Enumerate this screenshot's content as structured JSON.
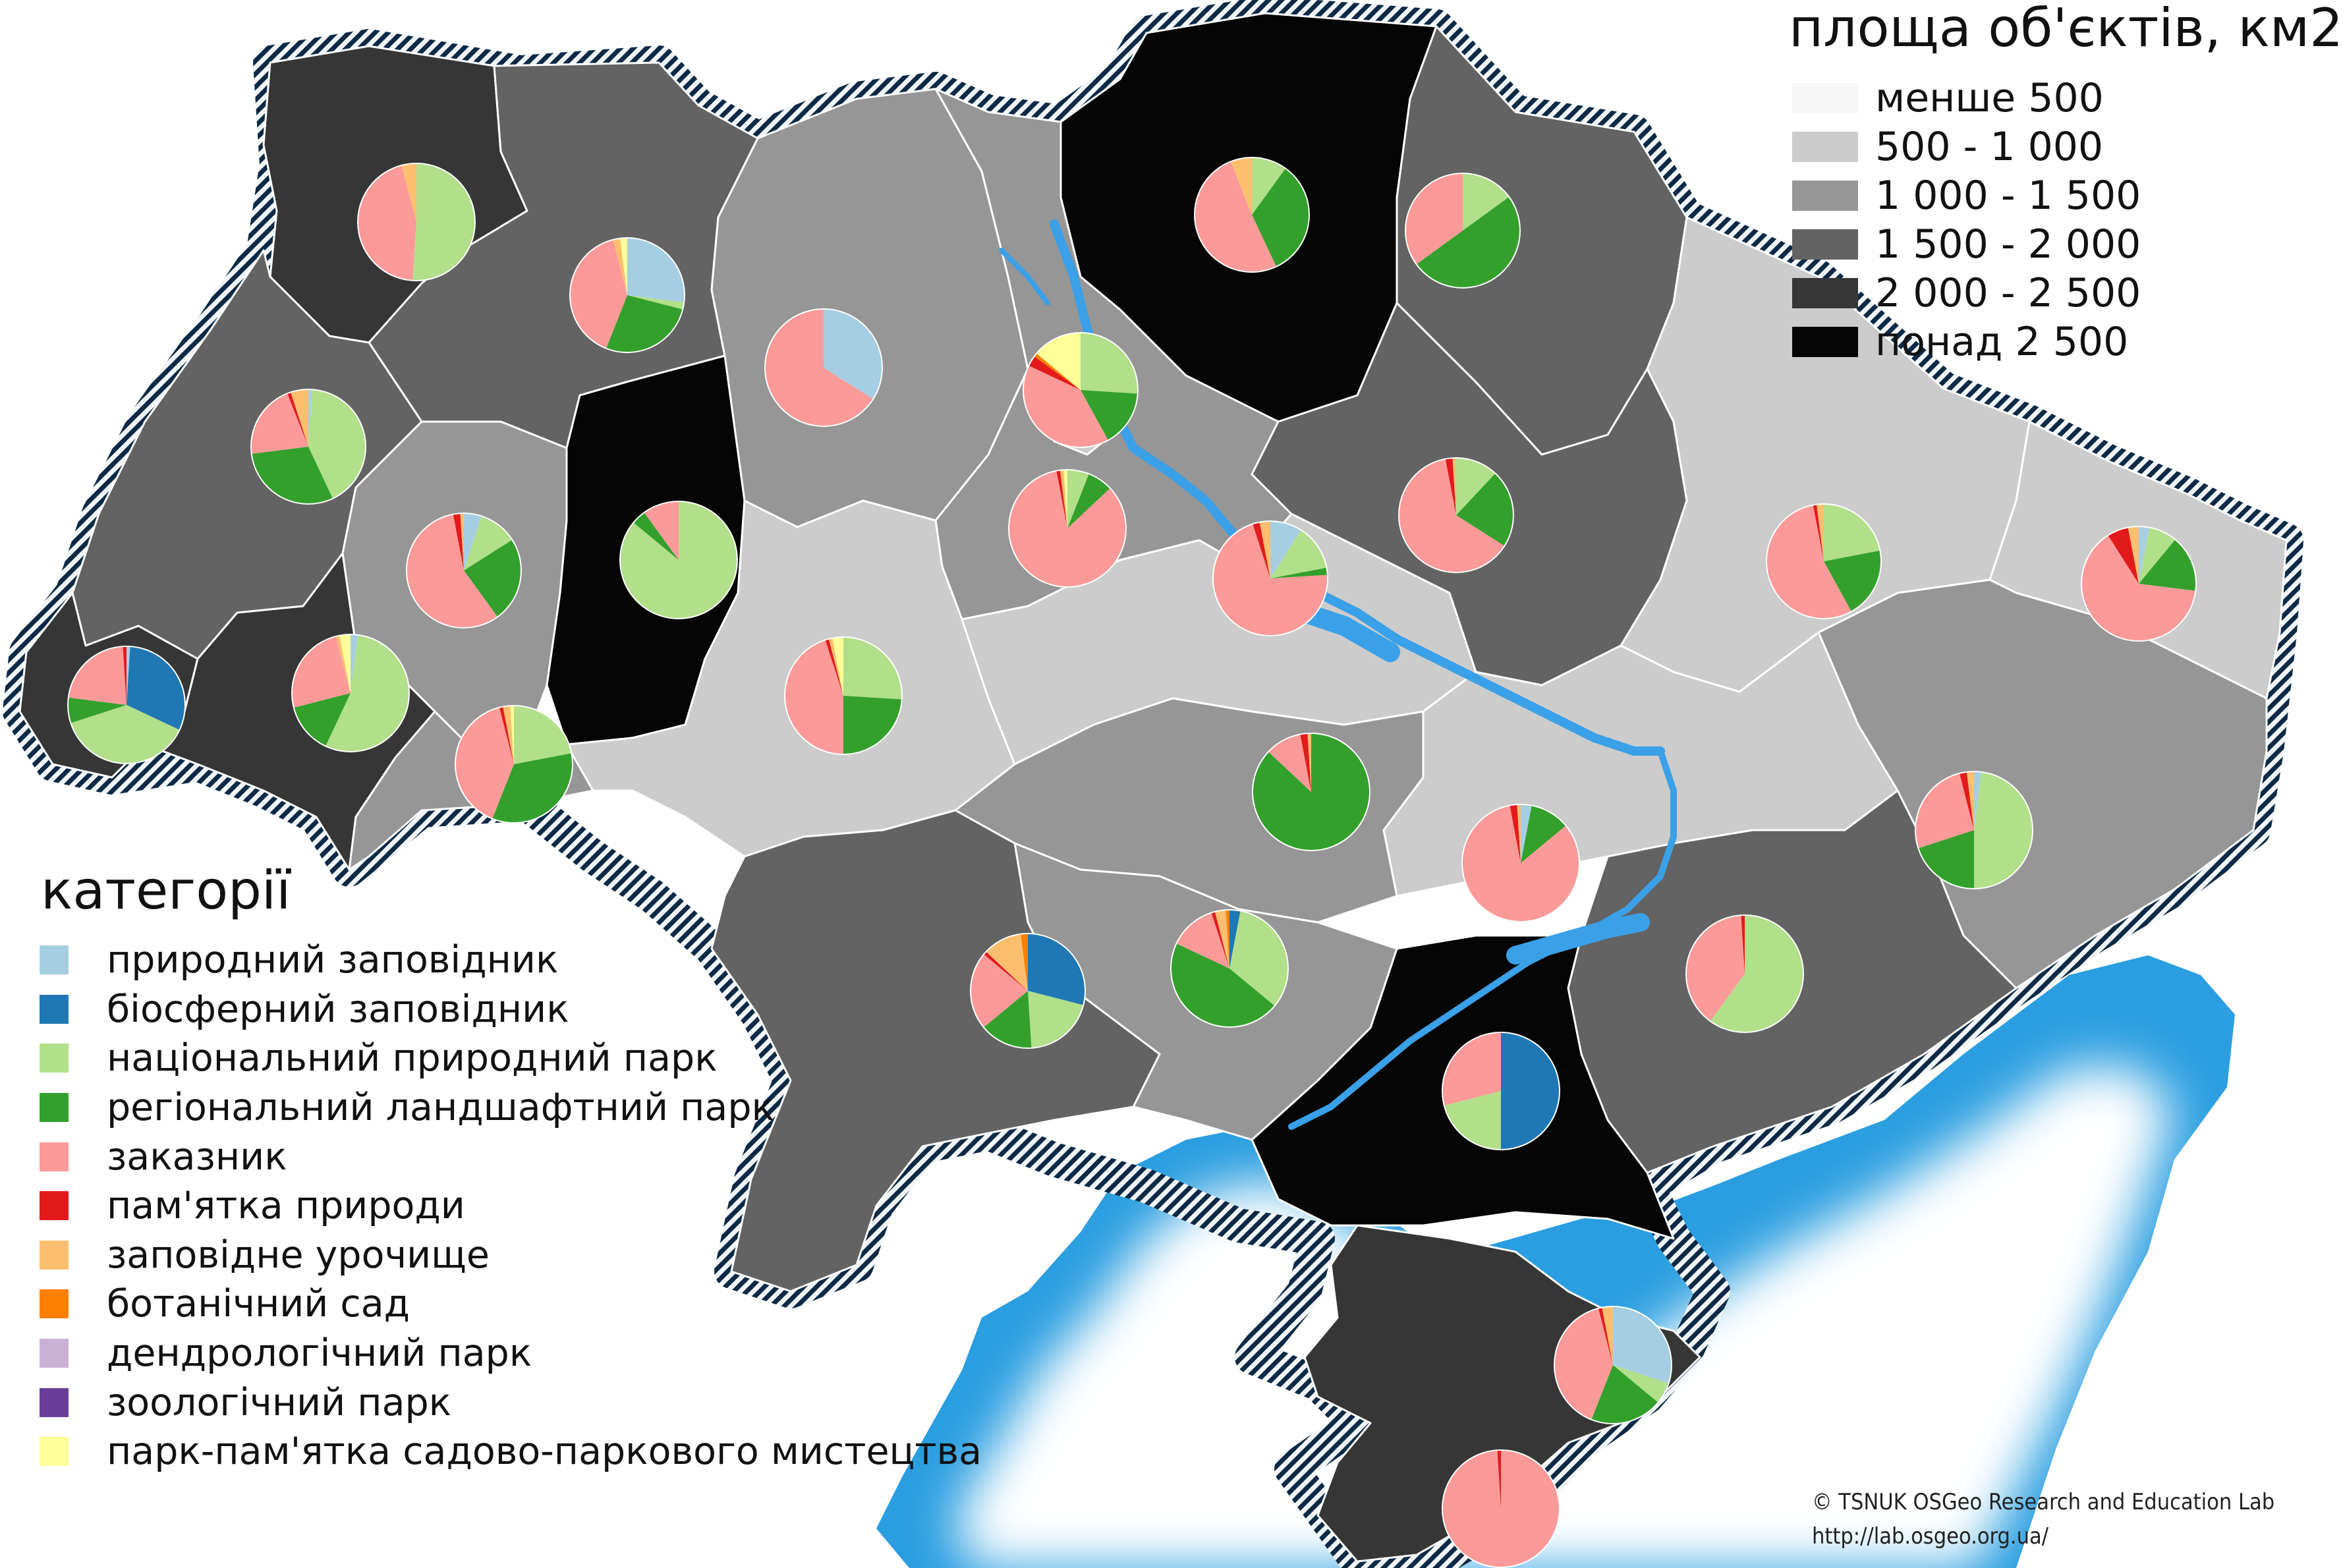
{
  "area_legend": {
    "title": "площа об'єктів, км2",
    "classes": [
      {
        "label": "менше 500",
        "color": "#f7f7f7"
      },
      {
        "label": "500 - 1 000",
        "color": "#cccccc"
      },
      {
        "label": "1 000 - 1 500",
        "color": "#969696"
      },
      {
        "label": "1 500 - 2 000",
        "color": "#636363"
      },
      {
        "label": "2 000 - 2 500",
        "color": "#363636"
      },
      {
        "label": "понад 2 500",
        "color": "#050505"
      }
    ]
  },
  "category_legend": {
    "title": "категорії",
    "items": [
      {
        "label": "природний заповідник",
        "color": "#a6cee3"
      },
      {
        "label": "біосферний заповідник",
        "color": "#1f78b4"
      },
      {
        "label": "національний природний парк",
        "color": "#b2df8a"
      },
      {
        "label": "регіональний ландшафтний парк",
        "color": "#33a02c"
      },
      {
        "label": "заказник",
        "color": "#fb9a99"
      },
      {
        "label": "пам'ятка природи",
        "color": "#e31a1c"
      },
      {
        "label": "заповідне урочище",
        "color": "#fdbf6f"
      },
      {
        "label": "ботанічний сад",
        "color": "#ff7f00"
      },
      {
        "label": "дендрологічний парк",
        "color": "#cab2d6"
      },
      {
        "label": "зоологічний парк",
        "color": "#6a3d9a"
      },
      {
        "label": "парк-пам'ятка садово-паркового мистецтва",
        "color": "#ffff99"
      }
    ]
  },
  "map": {
    "sea_color": "#2a9ee0",
    "river_color": "#3aa0e8",
    "regions": [
      {
        "name": "Volyn",
        "class": 4
      },
      {
        "name": "Rivne",
        "class": 3
      },
      {
        "name": "Lviv",
        "class": 3
      },
      {
        "name": "Zakarpattia",
        "class": 4
      },
      {
        "name": "Ivano-Frankivsk",
        "class": 4
      },
      {
        "name": "Ternopil",
        "class": 2
      },
      {
        "name": "Chernivtsi",
        "class": 2
      },
      {
        "name": "Khmelnytskyi",
        "class": 5
      },
      {
        "name": "Zhytomyr",
        "class": 2
      },
      {
        "name": "Kyiv",
        "class": 2
      },
      {
        "name": "Kyiv city",
        "class": 1
      },
      {
        "name": "Chernihiv",
        "class": 5
      },
      {
        "name": "Sumy",
        "class": 3
      },
      {
        "name": "Vinnytsia",
        "class": 1
      },
      {
        "name": "Cherkasy",
        "class": 1
      },
      {
        "name": "Poltava",
        "class": 3
      },
      {
        "name": "Kharkiv",
        "class": 1
      },
      {
        "name": "Luhansk",
        "class": 1
      },
      {
        "name": "Kirovohrad",
        "class": 2
      },
      {
        "name": "Dnipropetrovsk",
        "class": 1
      },
      {
        "name": "Donetsk",
        "class": 2
      },
      {
        "name": "Odesa",
        "class": 3
      },
      {
        "name": "Mykolaiv",
        "class": 2
      },
      {
        "name": "Zaporizhzhia",
        "class": 3
      },
      {
        "name": "Kherson",
        "class": 5
      },
      {
        "name": "Crimea",
        "class": 4
      }
    ],
    "pies": [
      {
        "region": "Volyn",
        "shares": [
          0,
          0,
          0.5,
          0,
          0.44,
          0,
          0.04,
          0,
          0,
          0,
          0
        ]
      },
      {
        "region": "Rivne",
        "shares": [
          0.27,
          0,
          0.02,
          0.27,
          0.4,
          0,
          0.02,
          0,
          0,
          0,
          0.02
        ]
      },
      {
        "region": "Zhytomyr",
        "shares": [
          0.34,
          0,
          0,
          0,
          0.66,
          0,
          0,
          0,
          0,
          0,
          0
        ]
      },
      {
        "region": "Chernihiv",
        "shares": [
          0,
          0,
          0.1,
          0.33,
          0.51,
          0,
          0.06,
          0,
          0,
          0,
          0
        ]
      },
      {
        "region": "Sumy",
        "shares": [
          0,
          0,
          0.15,
          0.5,
          0.35,
          0,
          0,
          0,
          0,
          0,
          0
        ]
      },
      {
        "region": "Lviv",
        "shares": [
          0.01,
          0,
          0.42,
          0.3,
          0.21,
          0.01,
          0.05,
          0,
          0,
          0,
          0
        ]
      },
      {
        "region": "Kyiv",
        "shares": [
          0,
          0,
          0.26,
          0.16,
          0.4,
          0.03,
          0,
          0.01,
          0,
          0,
          0.14
        ]
      },
      {
        "region": "Ternopil",
        "shares": [
          0.05,
          0,
          0.11,
          0.24,
          0.57,
          0.02,
          0.01,
          0,
          0,
          0,
          0
        ]
      },
      {
        "region": "Khmelnytskyi",
        "shares": [
          0,
          0,
          0.86,
          0.04,
          0.1,
          0,
          0,
          0,
          0,
          0,
          0
        ]
      },
      {
        "region": "Kyiv city",
        "shares": [
          0,
          0,
          0.06,
          0.07,
          0.84,
          0.01,
          0.01,
          0,
          0,
          0,
          0.01
        ]
      },
      {
        "region": "Poltava",
        "shares": [
          0,
          0,
          0.12,
          0.22,
          0.63,
          0.02,
          0.01,
          0,
          0,
          0,
          0
        ]
      },
      {
        "region": "Cherkasy",
        "shares": [
          0.09,
          0,
          0.13,
          0.02,
          0.71,
          0.02,
          0.03,
          0,
          0,
          0,
          0
        ]
      },
      {
        "region": "Kharkiv",
        "shares": [
          0,
          0,
          0.22,
          0.2,
          0.55,
          0.01,
          0.02,
          0,
          0,
          0,
          0
        ]
      },
      {
        "region": "Luhansk",
        "shares": [
          0.03,
          0,
          0.08,
          0.16,
          0.64,
          0.06,
          0.03,
          0,
          0,
          0,
          0
        ]
      },
      {
        "region": "Zakarpattia",
        "shares": [
          0.01,
          0.31,
          0.38,
          0.07,
          0.22,
          0.01,
          0,
          0,
          0,
          0,
          0
        ]
      },
      {
        "region": "Ivano-Frankivsk",
        "shares": [
          0.02,
          0,
          0.55,
          0.14,
          0.25,
          0,
          0.01,
          0,
          0,
          0,
          0.03
        ]
      },
      {
        "region": "Chernivtsi",
        "shares": [
          0,
          0,
          0.22,
          0.34,
          0.4,
          0.01,
          0.02,
          0,
          0,
          0,
          0.01
        ]
      },
      {
        "region": "Vinnytsia",
        "shares": [
          0,
          0,
          0.26,
          0.24,
          0.45,
          0.01,
          0.01,
          0,
          0,
          0,
          0.03
        ]
      },
      {
        "region": "Kirovohrad",
        "shares": [
          0,
          0,
          0,
          0.87,
          0.1,
          0.02,
          0.01,
          0,
          0,
          0,
          0
        ]
      },
      {
        "region": "Dnipropetrovsk",
        "shares": [
          0.03,
          0,
          0,
          0.11,
          0.83,
          0.02,
          0.01,
          0,
          0,
          0,
          0
        ]
      },
      {
        "region": "Donetsk",
        "shares": [
          0.02,
          0,
          0.48,
          0.2,
          0.26,
          0.02,
          0.02,
          0,
          0,
          0,
          0
        ]
      },
      {
        "region": "Odesa",
        "shares": [
          0,
          0.29,
          0.2,
          0.15,
          0.22,
          0.01,
          0.11,
          0.02,
          0,
          0,
          0
        ]
      },
      {
        "region": "Mykolaiv",
        "shares": [
          0,
          0.03,
          0.33,
          0.46,
          0.13,
          0.01,
          0.03,
          0.01,
          0,
          0,
          0
        ]
      },
      {
        "region": "Zaporizhzhia",
        "shares": [
          0,
          0,
          0.6,
          0,
          0.39,
          0.01,
          0,
          0,
          0,
          0,
          0
        ]
      },
      {
        "region": "Kherson",
        "shares": [
          0,
          0.5,
          0.21,
          0,
          0.29,
          0,
          0,
          0,
          0,
          0,
          0
        ]
      },
      {
        "region": "Crimea",
        "shares": [
          0.3,
          0,
          0.06,
          0.2,
          0.4,
          0.01,
          0.03,
          0,
          0,
          0,
          0
        ]
      },
      {
        "region": "Sevastopol",
        "shares": [
          0,
          0,
          0,
          0,
          0.99,
          0.01,
          0,
          0,
          0,
          0,
          0
        ]
      }
    ]
  },
  "credit": {
    "line1": "© TSNUK OSGeo Research and Education Lab",
    "line2": "http://lab.osgeo.org.ua/"
  }
}
